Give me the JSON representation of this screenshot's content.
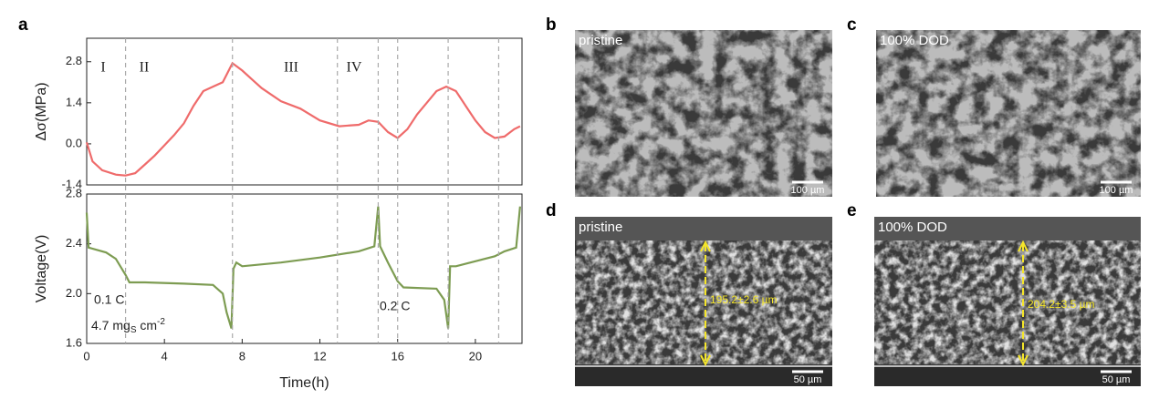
{
  "panels": {
    "a": "a",
    "b": "b",
    "c": "c",
    "d": "d",
    "e": "e"
  },
  "chart_data": [
    {
      "type": "line",
      "ylabel": "Δσ(MPa)",
      "color": "#ef6b6b",
      "x": [
        0,
        0.3,
        0.8,
        1.5,
        2.0,
        2.5,
        3,
        3.5,
        4,
        4.5,
        5,
        5.5,
        6,
        6.5,
        7,
        7.5,
        8,
        8.5,
        9,
        10,
        11,
        12,
        13,
        14,
        14.5,
        15,
        15.5,
        16,
        16.5,
        17,
        17.5,
        18,
        18.5,
        19,
        19.5,
        20,
        20.5,
        21,
        21.5,
        22,
        22.3
      ],
      "values": [
        0.05,
        -0.6,
        -0.9,
        -1.05,
        -1.08,
        -1.0,
        -0.7,
        -0.4,
        -0.05,
        0.3,
        0.7,
        1.3,
        1.8,
        1.95,
        2.1,
        2.75,
        2.5,
        2.2,
        1.9,
        1.45,
        1.2,
        0.8,
        0.6,
        0.65,
        0.8,
        0.75,
        0.4,
        0.2,
        0.5,
        1.0,
        1.4,
        1.8,
        1.95,
        1.8,
        1.3,
        0.8,
        0.4,
        0.2,
        0.25,
        0.5,
        0.6
      ],
      "xlim": [
        0,
        22.4
      ],
      "ylim": [
        -1.4,
        3.6
      ],
      "yticks": [
        -1.4,
        {
          "value": 0,
          "label": "0.0"
        },
        1.4,
        2.8
      ],
      "vlines": [
        2.0,
        7.5,
        12.9,
        15.0,
        16.0,
        18.6,
        21.2
      ],
      "annotations": [
        "I",
        "II",
        "III",
        "IV"
      ]
    },
    {
      "type": "line",
      "ylabel": "Voltage(V)",
      "xlabel": "Time(h)",
      "color": "#7d9c52",
      "x": [
        0,
        0.1,
        1,
        1.5,
        2.0,
        2.2,
        3,
        5,
        6.5,
        7.0,
        7.2,
        7.45,
        7.55,
        7.7,
        8.0,
        10,
        12,
        14,
        14.8,
        15.0,
        15.1,
        15.5,
        16.0,
        16.3,
        18,
        18.4,
        18.6,
        18.7,
        19,
        20,
        21,
        21.5,
        22.1,
        22.3
      ],
      "values": [
        2.65,
        2.37,
        2.33,
        2.28,
        2.15,
        2.09,
        2.09,
        2.08,
        2.07,
        2.0,
        1.85,
        1.72,
        2.2,
        2.25,
        2.22,
        2.25,
        2.29,
        2.34,
        2.38,
        2.7,
        2.38,
        2.25,
        2.1,
        2.05,
        2.04,
        1.95,
        1.72,
        2.22,
        2.22,
        2.26,
        2.3,
        2.34,
        2.37,
        2.7
      ],
      "xlim": [
        0,
        22.4
      ],
      "ylim": [
        1.6,
        2.8
      ],
      "xticks": [
        0,
        4,
        8,
        12,
        16,
        20
      ],
      "yticks": [
        1.6,
        {
          "value": 2,
          "label": "2.0"
        },
        2.4,
        2.8
      ],
      "annotations": [
        "0.1 C",
        {
          "text": "4.7 mg",
          "sub": "S",
          "tail": " cm",
          "sup": "-2"
        },
        "0.2 C"
      ]
    }
  ],
  "images": [
    {
      "caption": "pristine",
      "scale_bar": "100 µm"
    },
    {
      "caption": "100% DOD",
      "scale_bar": "100 µm"
    },
    {
      "caption": "pristine",
      "scale_bar": "50 µm",
      "thickness": "195.2±2.6 µm"
    },
    {
      "caption": "100% DOD",
      "scale_bar": "50 µm",
      "thickness": "204.2±3.5 µm"
    }
  ]
}
